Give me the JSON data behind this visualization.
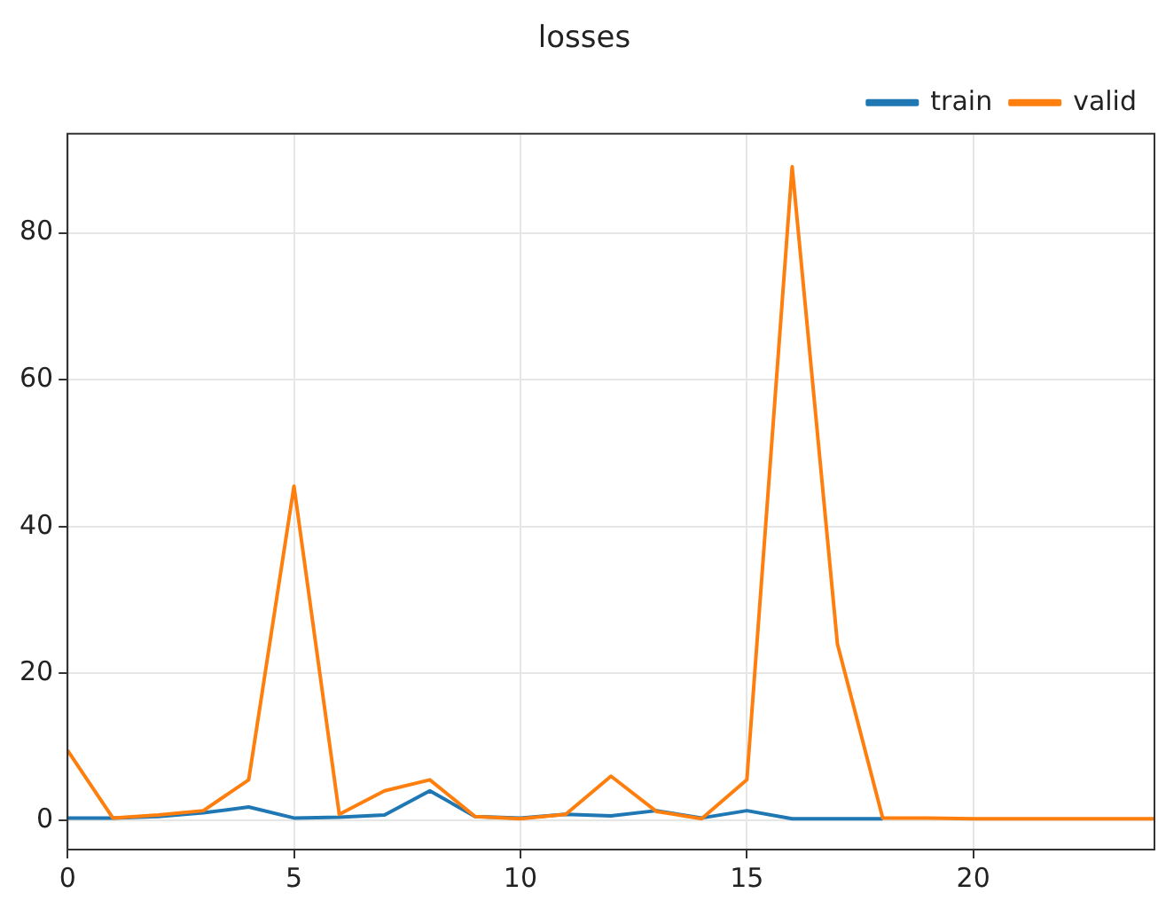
{
  "chart_data": {
    "type": "line",
    "title": "losses",
    "x": [
      0,
      1,
      2,
      3,
      4,
      5,
      6,
      7,
      8,
      9,
      10,
      11,
      12,
      13,
      14,
      15,
      16,
      17,
      18,
      19,
      20,
      21,
      22,
      23,
      24
    ],
    "series": [
      {
        "name": "train",
        "color": "#1f77b4",
        "values": [
          0.3,
          0.3,
          0.5,
          1,
          1.8,
          0.3,
          0.4,
          0.7,
          4,
          0.5,
          0.3,
          0.8,
          0.6,
          1.3,
          0.3,
          1.3,
          0.2,
          0.2,
          0.2,
          null,
          null,
          null,
          null,
          null,
          null
        ]
      },
      {
        "name": "valid",
        "color": "#ff7f0e",
        "values": [
          9.5,
          0.3,
          0.7,
          1.3,
          5.5,
          45.5,
          0.8,
          4,
          5.5,
          0.5,
          0.2,
          0.8,
          6,
          1.2,
          0.2,
          5.5,
          89,
          24,
          0.3,
          0.3,
          0.2,
          0.2,
          0.2,
          0.2,
          0.2
        ]
      }
    ],
    "xlim": [
      0,
      24
    ],
    "xticks": [
      0,
      5,
      10,
      15,
      20
    ],
    "ylim": [
      -4,
      93.5
    ],
    "yticks": [
      0,
      20,
      40,
      60,
      80
    ],
    "grid": true,
    "legend": "top right"
  }
}
